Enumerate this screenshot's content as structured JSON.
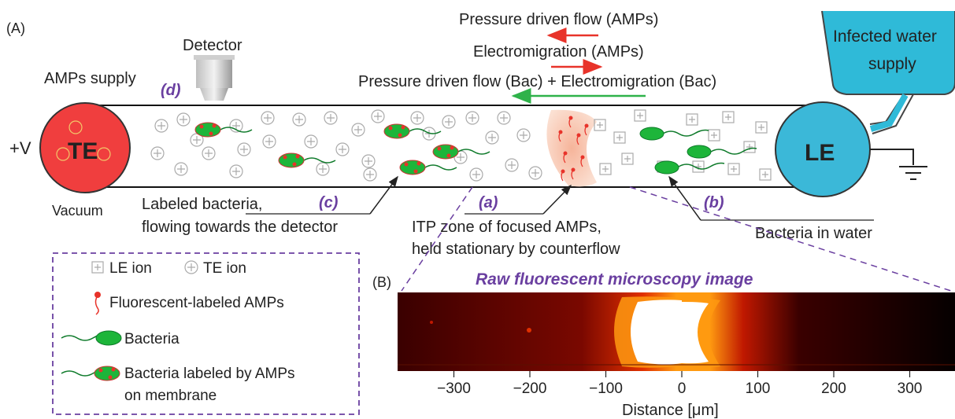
{
  "panel_a": {
    "label": "(A)",
    "arrows": {
      "pressure_amps": "Pressure driven flow (AMPs)",
      "electromigration_amps": "Electromigration (AMPs)",
      "pressure_bac": "Pressure driven flow (Bac) + Electromigration (Bac)"
    },
    "detector": "Detector",
    "amps_supply": "AMPs supply",
    "water_supply_line1": "Infected water",
    "water_supply_line2": "supply",
    "voltage": "+V",
    "te": "TE",
    "le": "LE",
    "vacuum": "Vacuum",
    "markers": {
      "a": "(a)",
      "b": "(b)",
      "c": "(c)",
      "d": "(d)"
    },
    "labeled_bacteria_line1": "Labeled bacteria,",
    "labeled_bacteria_line2": "flowing towards the detector",
    "itp_line1": "ITP zone of focused AMPs,",
    "itp_line2": "held stationary by counterflow",
    "bacteria_in_water": "Bacteria in water"
  },
  "legend": {
    "le_ion": "LE ion",
    "te_ion": "TE ion",
    "amps": "Fluorescent-labeled AMPs",
    "bacteria": "Bacteria",
    "labeled_line1": "Bacteria labeled by AMPs",
    "labeled_line2": "on membrane"
  },
  "panel_b": {
    "label": "(B)",
    "title": "Raw fluorescent microscopy image",
    "xlabel": "Distance [μm]",
    "ticks": [
      "−300",
      "−200",
      "−100",
      "0",
      "100",
      "200",
      "300"
    ]
  },
  "colors": {
    "te": "#f03e3e",
    "le": "#3bb8d8",
    "accent": "#6a3fa0",
    "arrow_red": "#e8332a",
    "arrow_green": "#2fb24a",
    "bacteria": "#1db53a"
  }
}
